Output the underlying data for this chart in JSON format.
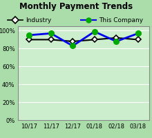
{
  "title": "Monthly Payment Trends",
  "x_labels": [
    "10/17",
    "11/17",
    "12/17",
    "01/18",
    "02/18",
    "03/18"
  ],
  "x_values": [
    0,
    1,
    2,
    3,
    4,
    5
  ],
  "industry_values": [
    90,
    90,
    88,
    90,
    92,
    90
  ],
  "company_values": [
    95,
    97,
    83,
    99,
    88,
    97
  ],
  "industry_color": "#000000",
  "company_color": "#0000EE",
  "company_marker_color": "#00AA00",
  "ylim": [
    0,
    105
  ],
  "yticks": [
    0,
    20,
    40,
    60,
    80,
    100
  ],
  "ytick_labels": [
    "0%",
    "20%",
    "40%",
    "60%",
    "80%",
    "100%"
  ],
  "title_bg_color": "#AAAACC",
  "plot_bg_color": "#CCEECC",
  "outer_bg_color": "#AADDAA",
  "border_color": "#888888",
  "legend_industry_label": "Industry",
  "legend_company_label": "This Company",
  "title_fontsize": 8.5,
  "label_fontsize": 6,
  "legend_fontsize": 6.5
}
